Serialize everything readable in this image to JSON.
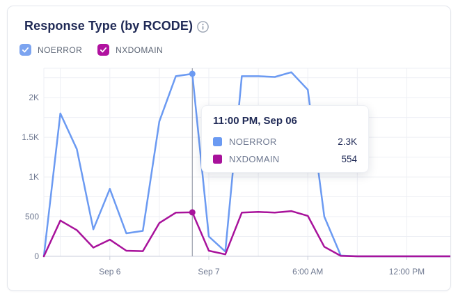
{
  "card": {
    "title": "Response Type (by RCODE)"
  },
  "legend": {
    "items": [
      {
        "label": "NOERROR",
        "color": "#7ca4f0",
        "checked": true
      },
      {
        "label": "NXDOMAIN",
        "color": "#b112a0",
        "checked": true
      }
    ]
  },
  "tooltip": {
    "title": "11:00 PM, Sep 06",
    "rows": [
      {
        "label": "NOERROR",
        "value": "2.3K",
        "color": "#6b9af2"
      },
      {
        "label": "NXDOMAIN",
        "value": "554",
        "color": "#a8129b"
      }
    ]
  },
  "chart_data": {
    "type": "line",
    "title": "Response Type (by RCODE)",
    "xlabel": "",
    "ylabel": "",
    "x_type": "time-category",
    "num_points": 26,
    "x_tick_labels": [
      {
        "index": 4,
        "label": "Sep 6"
      },
      {
        "index": 10,
        "label": "Sep 7"
      },
      {
        "index": 16,
        "label": "6:00 AM"
      },
      {
        "index": 22,
        "label": "12:00 PM"
      }
    ],
    "y_ticks": [
      {
        "value": 0,
        "label": "0"
      },
      {
        "value": 500,
        "label": "500"
      },
      {
        "value": 1000,
        "label": "1K"
      },
      {
        "value": 1500,
        "label": "1.5K"
      },
      {
        "value": 2000,
        "label": "2K"
      }
    ],
    "ylim": [
      0,
      2370
    ],
    "grid": true,
    "legend_position": "top",
    "series": [
      {
        "name": "NOERROR",
        "color": "#6b9af2",
        "values": [
          0,
          1800,
          1350,
          340,
          850,
          290,
          320,
          1700,
          2270,
          2300,
          250,
          60,
          2270,
          2270,
          2260,
          2320,
          2100,
          500,
          10,
          0,
          0,
          0,
          0,
          0,
          0,
          0
        ]
      },
      {
        "name": "NXDOMAIN",
        "color": "#a8129b",
        "values": [
          0,
          450,
          330,
          110,
          210,
          70,
          65,
          420,
          550,
          554,
          70,
          25,
          550,
          560,
          550,
          570,
          510,
          120,
          5,
          0,
          0,
          0,
          0,
          0,
          0,
          0
        ]
      }
    ],
    "highlight": {
      "index": 9,
      "label": "11:00 PM, Sep 06",
      "values": {
        "NOERROR": "2.3K",
        "NXDOMAIN": "554"
      }
    },
    "colors": {
      "grid": "#edeff4",
      "axis_line": "#c9cedb",
      "hover_line": "#9ca1ad",
      "tick_text": "#6e7890"
    }
  }
}
